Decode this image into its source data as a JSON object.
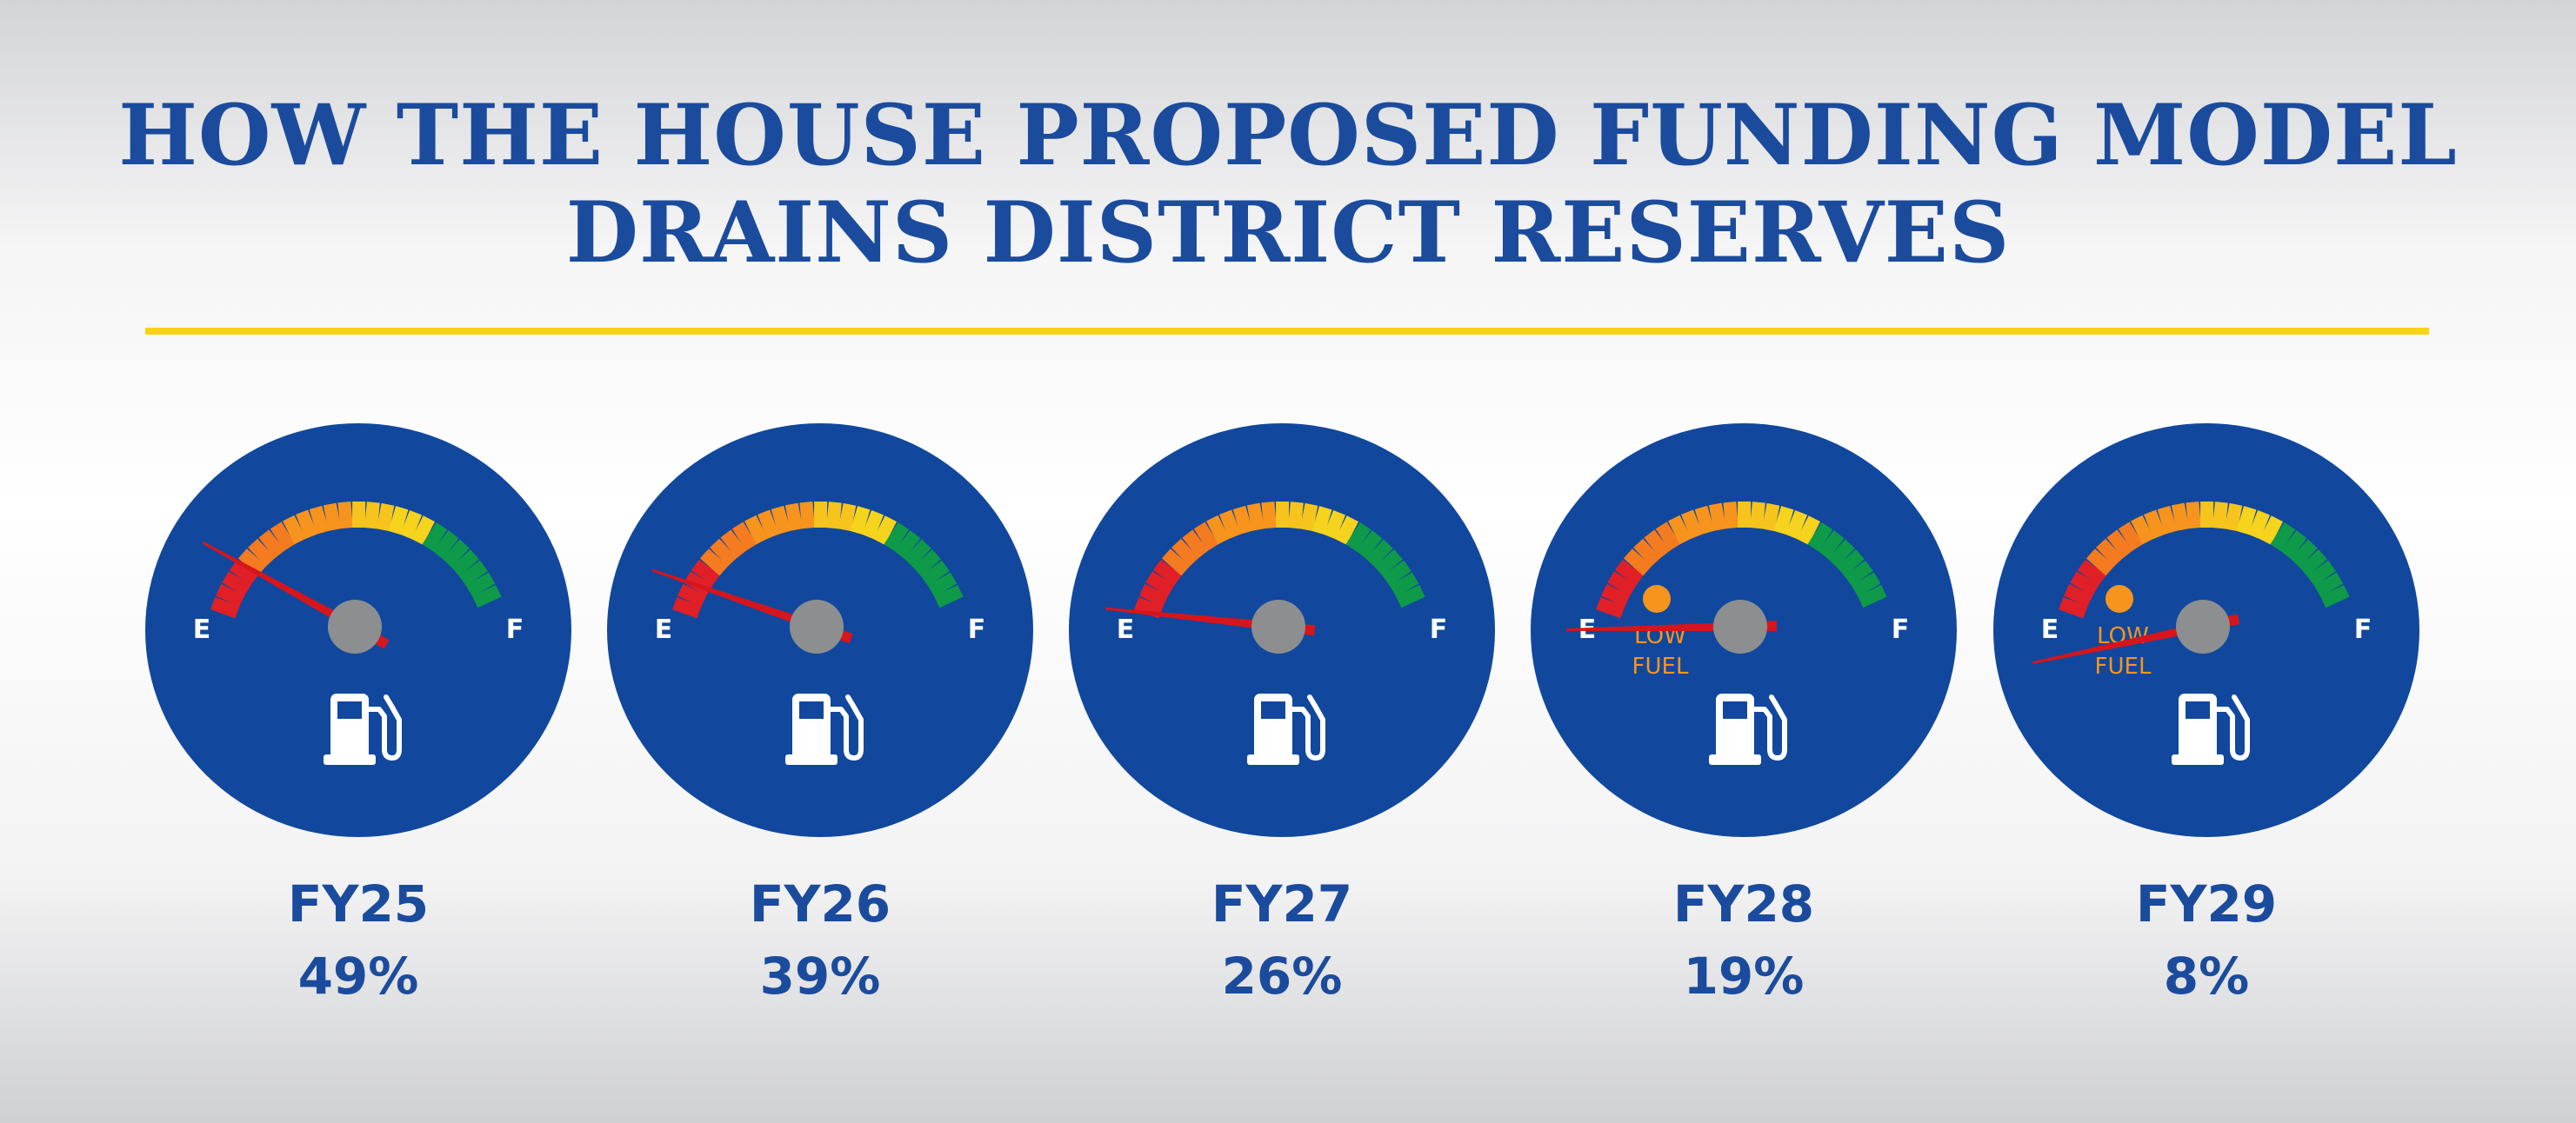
{
  "title_line1": "HOW THE HOUSE PROPOSED FUNDING MODEL",
  "title_line2": "DRAINS DISTRICT RESERVES",
  "colors": {
    "title": "#1b4b9d",
    "gauge_face": "#11489d",
    "divider": "#f9d21a",
    "needle": "#d6151c",
    "hub": "#8d8e90",
    "low_fuel": "#f7941e",
    "ticks": [
      "#e11f26",
      "#f47b20",
      "#f7941e",
      "#f6c41d",
      "#f6d31d",
      "#0e9a48"
    ]
  },
  "scale": {
    "empty_label": "E",
    "full_label": "F",
    "min": 0,
    "max": 100,
    "icon": "fuel-pump-icon"
  },
  "low_fuel_text": [
    "LOW",
    "FUEL"
  ],
  "chart_data": {
    "type": "gauge",
    "title": "HOW THE HOUSE PROPOSED FUNDING MODEL DRAINS DISTRICT RESERVES",
    "unit": "%",
    "categories": [
      "FY25",
      "FY26",
      "FY27",
      "FY28",
      "FY29"
    ],
    "values": [
      49,
      39,
      26,
      19,
      8
    ],
    "value_labels": [
      "49%",
      "39%",
      "26%",
      "19%",
      "8%"
    ],
    "low_fuel_warning": [
      false,
      false,
      false,
      true,
      true
    ]
  }
}
